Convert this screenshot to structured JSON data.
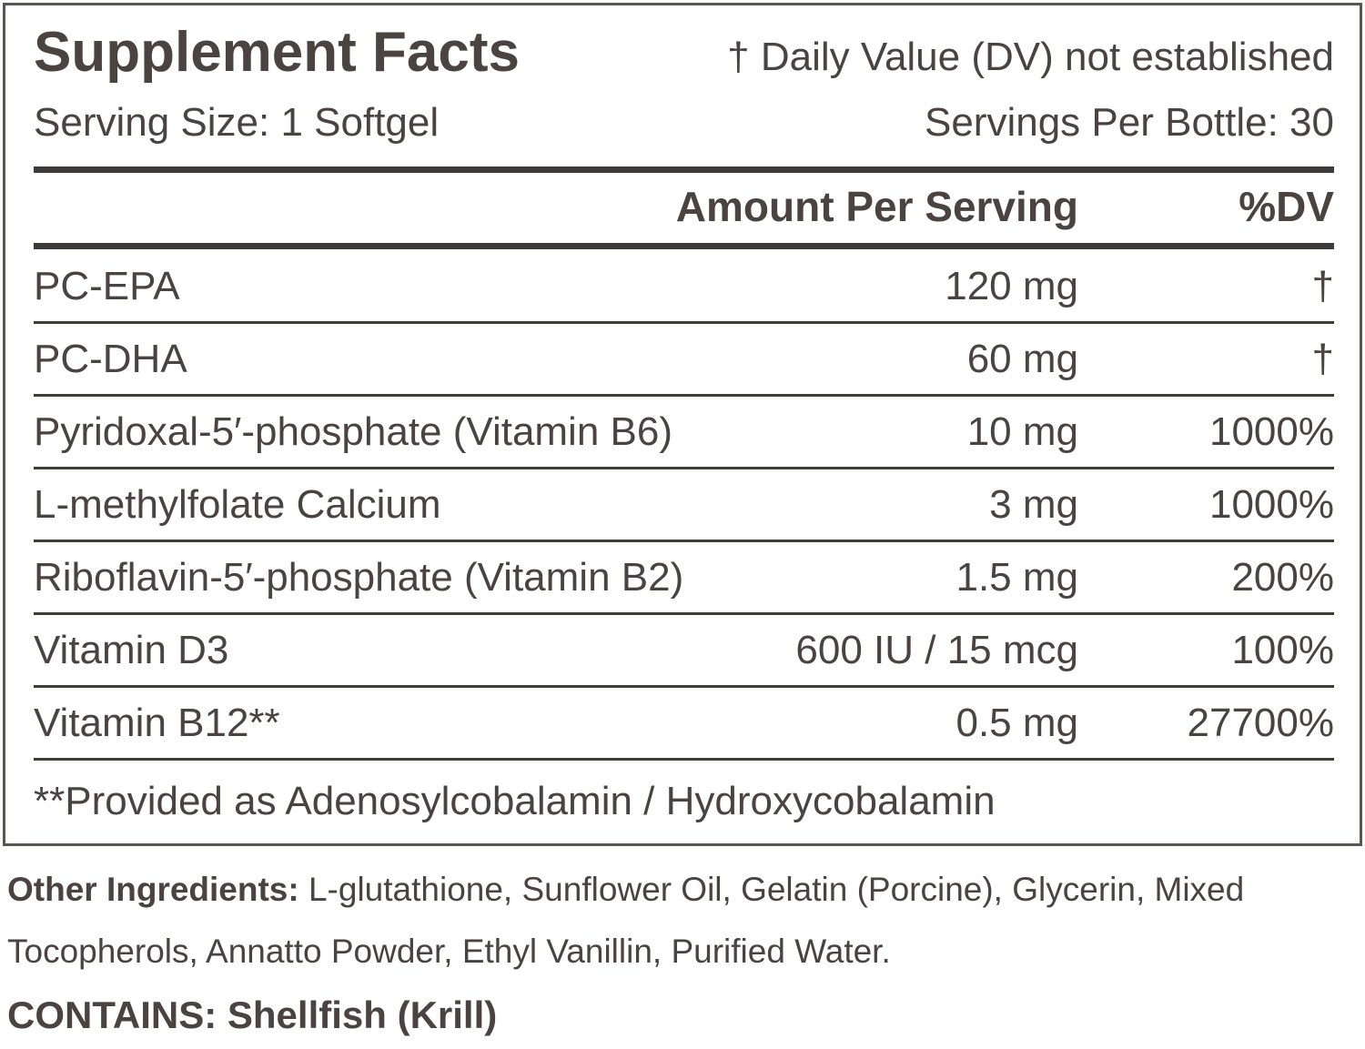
{
  "header": {
    "title": "Supplement Facts",
    "note": "† Daily Value (DV) not established",
    "serving_size": "Serving Size: 1 Softgel",
    "servings_per_container": "Servings Per Bottle: 30"
  },
  "table": {
    "columns": [
      "Amount Per Serving",
      "%DV"
    ],
    "rows": [
      [
        "PC-EPA",
        "120 mg",
        "†"
      ],
      [
        "PC-DHA",
        "60 mg",
        "†"
      ],
      [
        "Pyridoxal-5′-phosphate (Vitamin B6)",
        "10 mg",
        "1000%"
      ],
      [
        "L-methylfolate Calcium",
        "3 mg",
        "1000%"
      ],
      [
        "Riboflavin-5′-phosphate (Vitamin B2)",
        "1.5 mg",
        "200%"
      ],
      [
        "Vitamin D3",
        "600 IU / 15 mcg",
        "100%"
      ],
      [
        "Vitamin B12**",
        "0.5 mg",
        "27700%"
      ]
    ]
  },
  "footnote": "**Provided as Adenosylcobalamin / Hydroxycobalamin",
  "other_ingredients": {
    "label": "Other Ingredients:",
    "text": "L-glutathione, Sunflower Oil, Gelatin (Porcine), Glycerin, Mixed Tocopherols, Annatto Powder, Ethyl Vanillin, Purified Water."
  },
  "contains": {
    "label": "CONTAINS:",
    "text": "Shellfish (Krill)"
  }
}
